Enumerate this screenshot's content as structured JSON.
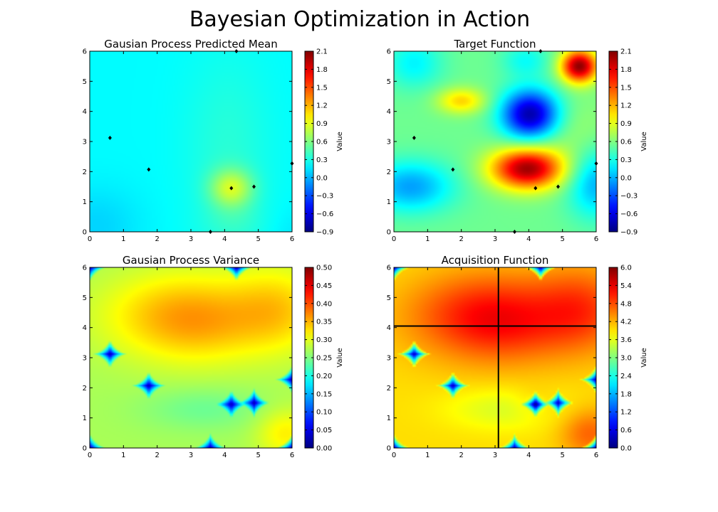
{
  "figure": {
    "title": "Bayesian Optimization in Action"
  },
  "chart_data": [
    {
      "type": "heatmap",
      "title": "Gausian Process Predicted Mean",
      "xlim": [
        0,
        6
      ],
      "ylim": [
        0,
        6
      ],
      "x_ticks": [
        0,
        1,
        2,
        3,
        4,
        5,
        6
      ],
      "y_ticks": [
        0,
        1,
        2,
        3,
        4,
        5,
        6
      ],
      "colormap": "jet",
      "colorbar": {
        "label": "Value",
        "vmin": -0.9,
        "vmax": 2.1,
        "ticks": [
          "−0.9",
          "−0.6",
          "−0.3",
          "0.0",
          "0.3",
          "0.6",
          "0.9",
          "1.2",
          "1.5",
          "1.8",
          "2.1"
        ]
      },
      "points": [
        [
          0.6,
          3.12
        ],
        [
          1.75,
          2.07
        ],
        [
          4.2,
          1.45
        ],
        [
          4.87,
          1.5
        ],
        [
          6.0,
          2.27
        ],
        [
          3.58,
          0.0
        ],
        [
          4.35,
          6.0
        ]
      ],
      "crosshair": null
    },
    {
      "type": "heatmap",
      "title": "Target Function",
      "xlim": [
        0,
        6
      ],
      "ylim": [
        0,
        6
      ],
      "x_ticks": [
        0,
        1,
        2,
        3,
        4,
        5,
        6
      ],
      "y_ticks": [
        0,
        1,
        2,
        3,
        4,
        5,
        6
      ],
      "colormap": "jet",
      "colorbar": {
        "label": "Value",
        "vmin": -0.9,
        "vmax": 2.1,
        "ticks": [
          "−0.9",
          "−0.6",
          "−0.3",
          "0.0",
          "0.3",
          "0.6",
          "0.9",
          "1.2",
          "1.5",
          "1.8",
          "2.1"
        ]
      },
      "points": [
        [
          0.6,
          3.12
        ],
        [
          1.75,
          2.07
        ],
        [
          4.2,
          1.45
        ],
        [
          4.87,
          1.5
        ],
        [
          6.0,
          2.27
        ],
        [
          3.58,
          0.0
        ],
        [
          4.35,
          6.0
        ]
      ],
      "crosshair": null
    },
    {
      "type": "heatmap",
      "title": "Gausian Process Variance",
      "xlim": [
        0,
        6
      ],
      "ylim": [
        0,
        6
      ],
      "x_ticks": [
        0,
        1,
        2,
        3,
        4,
        5,
        6
      ],
      "y_ticks": [
        0,
        1,
        2,
        3,
        4,
        5,
        6
      ],
      "colormap": "jet",
      "colorbar": {
        "label": "Value",
        "vmin": 0.0,
        "vmax": 0.5,
        "ticks": [
          "0.00",
          "0.05",
          "0.10",
          "0.15",
          "0.20",
          "0.25",
          "0.30",
          "0.35",
          "0.40",
          "0.45",
          "0.50"
        ]
      },
      "points": [],
      "crosshair": null
    },
    {
      "type": "heatmap",
      "title": "Acquisition Function",
      "xlim": [
        0,
        6
      ],
      "ylim": [
        0,
        6
      ],
      "x_ticks": [
        0,
        1,
        2,
        3,
        4,
        5,
        6
      ],
      "y_ticks": [
        0,
        1,
        2,
        3,
        4,
        5,
        6
      ],
      "colormap": "jet",
      "colorbar": {
        "label": "Value",
        "vmin": 0.0,
        "vmax": 6.0,
        "ticks": [
          "0.0",
          "0.6",
          "1.2",
          "1.8",
          "2.4",
          "3.0",
          "3.6",
          "4.2",
          "4.8",
          "5.4",
          "6.0"
        ]
      },
      "points": [],
      "crosshair": {
        "x": 3.1,
        "y": 4.05
      }
    }
  ]
}
